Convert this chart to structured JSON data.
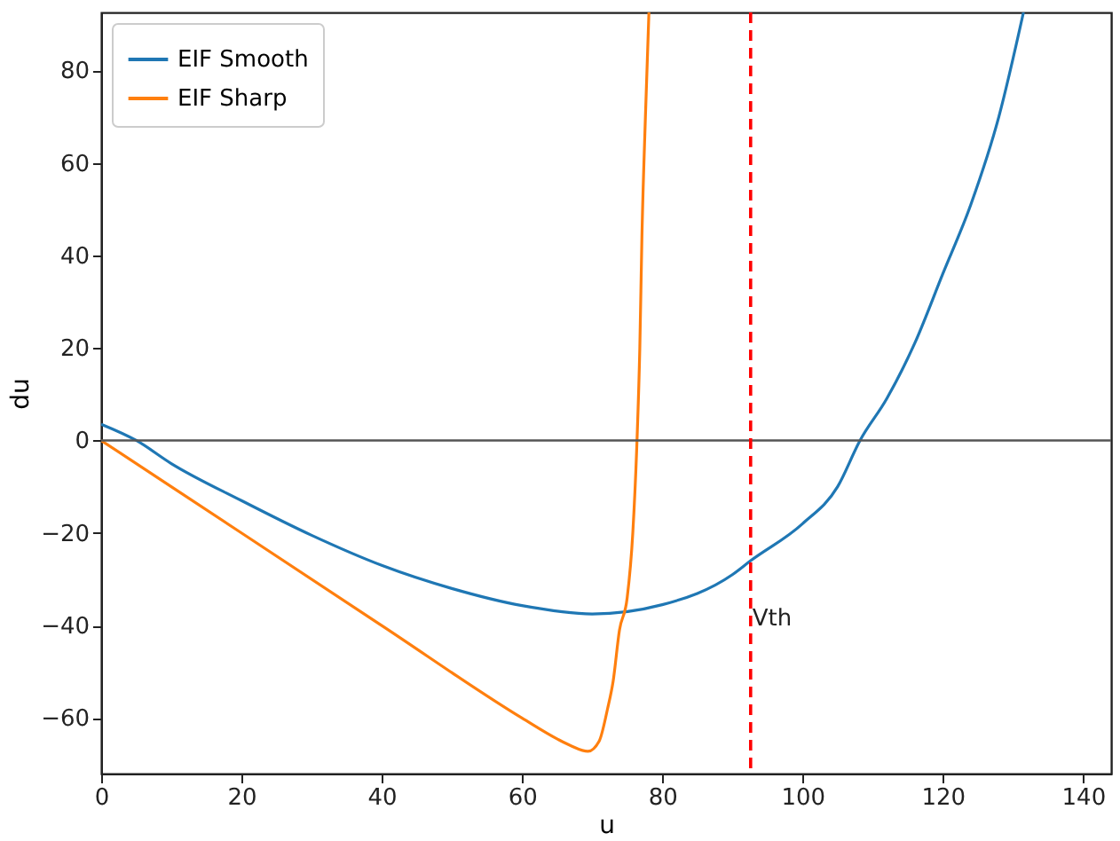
{
  "chart_data": {
    "type": "line",
    "xlabel": "u",
    "ylabel": "du",
    "xlim": [
      0,
      144
    ],
    "ylim": [
      -72,
      92.5
    ],
    "xticks": [
      0,
      20,
      40,
      60,
      80,
      100,
      120,
      140
    ],
    "yticks": [
      -60,
      -40,
      -20,
      0,
      20,
      40,
      60,
      80
    ],
    "grid": false,
    "legend": "top left",
    "line_style": "solid",
    "marker": "none",
    "series": [
      {
        "name": "EIF Smooth",
        "color": "#1f77b4",
        "x": [
          0,
          5,
          10,
          20,
          30,
          40,
          50,
          60,
          70,
          80,
          90,
          92.6,
          100,
          105,
          108.2,
          112,
          116,
          120,
          124,
          128,
          131.5
        ],
        "values": [
          3.5,
          0,
          -5,
          -13,
          -20.5,
          -27,
          -32,
          -35.7,
          -37.5,
          -35.5,
          -29,
          -26,
          -18,
          -10,
          0,
          9,
          21,
          36,
          51,
          70,
          92.5
        ]
      },
      {
        "name": "EIF Sharp",
        "color": "#ff7f0e",
        "x": [
          0,
          20,
          40,
          60,
          65,
          67,
          69.4,
          71,
          72.2,
          73,
          73.9,
          75,
          75.8,
          76.4,
          76.8,
          77.1,
          77.6,
          78.1
        ],
        "values": [
          0,
          -20,
          -40,
          -60,
          -64.5,
          -66,
          -67.2,
          -65,
          -58,
          -52,
          -41,
          -34,
          -20,
          0,
          20,
          44,
          70,
          92.5
        ]
      }
    ],
    "ref_lines": [
      {
        "axis": "y",
        "value": 0,
        "color": "#555555",
        "line_style": "solid"
      },
      {
        "axis": "x",
        "value": 92.6,
        "label": "Vth",
        "color": "#ff0000",
        "line_style": "dashed"
      }
    ]
  }
}
